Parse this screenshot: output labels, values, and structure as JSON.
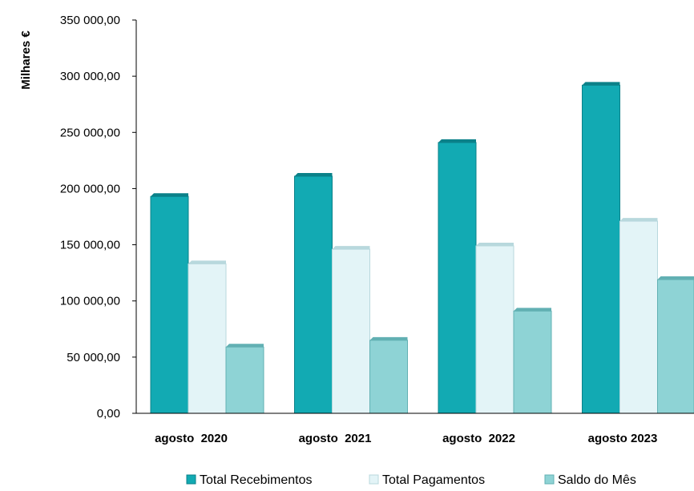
{
  "chart_data": {
    "type": "bar",
    "title": "",
    "xlabel": "",
    "ylabel": "Milhares €",
    "ylim": [
      0,
      350000
    ],
    "yticks": [
      0,
      50000,
      100000,
      150000,
      200000,
      250000,
      300000,
      350000
    ],
    "ytick_labels": [
      "0,00",
      "50 000,00",
      "100 000,00",
      "150 000,00",
      "200 000,00",
      "250 000,00",
      "300 000,00",
      "350 000,00"
    ],
    "categories": [
      "agosto  2020",
      "agosto  2021",
      "agosto  2022",
      "agosto 2023"
    ],
    "series": [
      {
        "name": "Total Recebimentos",
        "color": "#12aab3",
        "values": [
          193000,
          211000,
          241000,
          292000
        ]
      },
      {
        "name": "Total Pagamentos",
        "color": "#e3f4f7",
        "values": [
          133000,
          146000,
          149000,
          171000
        ]
      },
      {
        "name": "Saldo do Mês",
        "color": "#8ed3d5",
        "values": [
          59000,
          65000,
          91000,
          119000
        ]
      }
    ],
    "grid": false,
    "legend_position": "bottom"
  }
}
